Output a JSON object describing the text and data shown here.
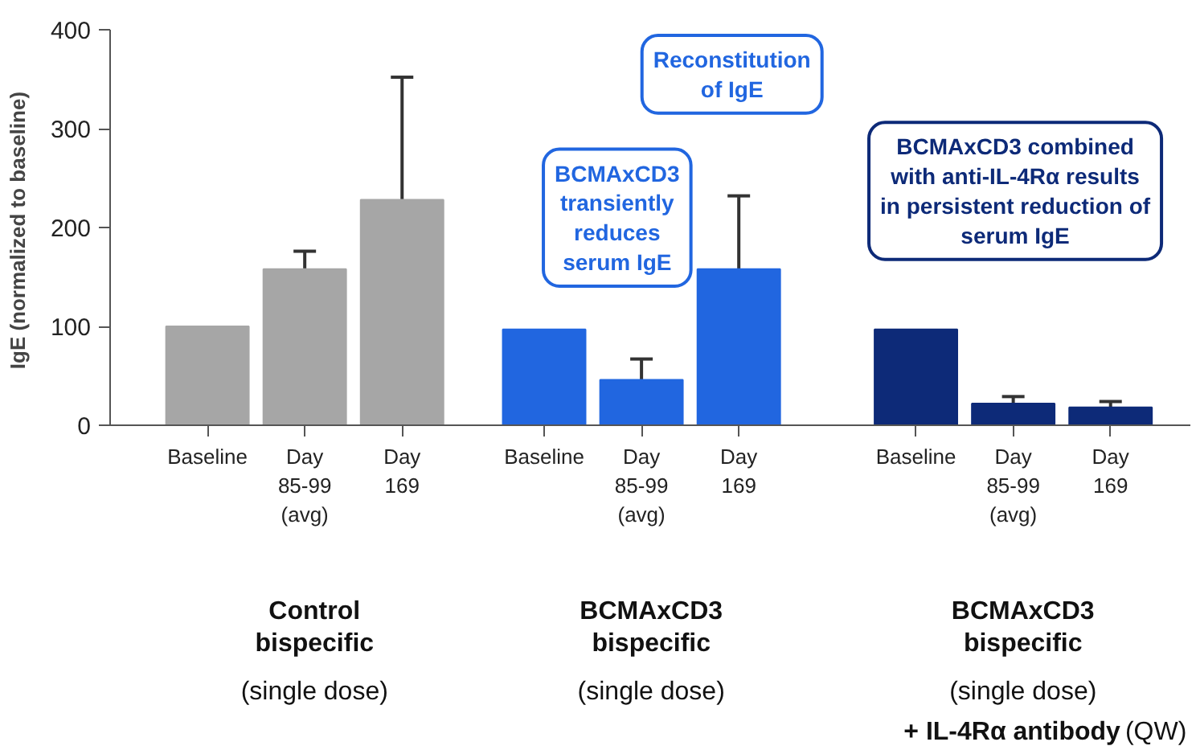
{
  "chart_data": {
    "type": "bar",
    "ylabel": "IgE  (normalized to baseline)",
    "categories": [
      "Baseline",
      "Day\n85-99\n(avg)",
      "Day\n169",
      "Baseline",
      "Day\n85-99\n(avg)",
      "Day\n169",
      "Baseline",
      "Day\n85-99\n(avg)",
      "Day\n169"
    ],
    "values": [
      100,
      158,
      228,
      97,
      46,
      158,
      97,
      22,
      18
    ],
    "errors": [
      null,
      [
        158,
        176
      ],
      [
        228,
        352
      ],
      null,
      [
        46,
        67
      ],
      [
        158,
        232
      ],
      null,
      [
        22,
        29
      ],
      [
        18,
        24
      ]
    ],
    "colors": [
      "#a6a6a6",
      "#a6a6a6",
      "#a6a6a6",
      "#2166e0",
      "#2166e0",
      "#2166e0",
      "#0d2a78",
      "#0d2a78",
      "#0d2a78"
    ],
    "ylim": [
      0,
      400
    ],
    "yticks": [
      0,
      100,
      200,
      300,
      400
    ],
    "grid": false,
    "annotations": [
      "BCMAxCD3\ntransiently\nreduces\nserum IgE",
      "Reconstitution\nof IgE",
      "BCMAxCD3 combined\nwith anti-IL-4Rα results\nin persistent reduction of\nserum IgE",
      "Control\nbispecific",
      "(single dose)",
      "BCMAxCD3\nbispecific",
      "(single dose)",
      "BCMAxCD3\nbispecific",
      "(single dose)",
      "+ IL-4Rα antibody",
      "(QW)"
    ]
  }
}
